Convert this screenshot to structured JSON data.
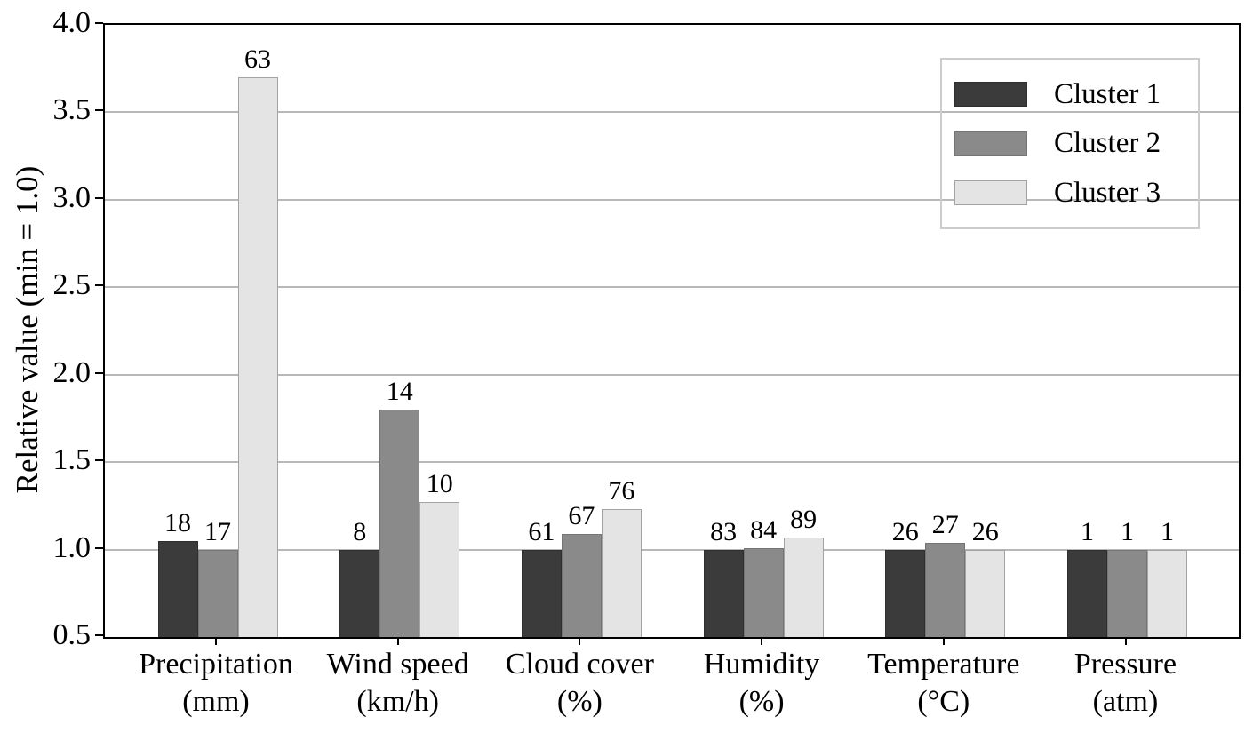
{
  "chart_data": {
    "type": "bar",
    "title": "",
    "ylabel": "Relative value (min = 1.0)",
    "xlabel": "",
    "ylim": [
      0.5,
      4.0
    ],
    "yticks": [
      "0.5",
      "1.0",
      "1.5",
      "2.0",
      "2.5",
      "3.0",
      "3.5",
      "4.0"
    ],
    "grid": "horizontal",
    "legend_position": "upper right",
    "categories": [
      {
        "label": "Precipitation",
        "unit": "(mm)"
      },
      {
        "label": "Wind speed",
        "unit": "(km/h)"
      },
      {
        "label": "Cloud cover",
        "unit": "(%)"
      },
      {
        "label": "Humidity",
        "unit": "(%)"
      },
      {
        "label": "Temperature",
        "unit": "(°C)"
      },
      {
        "label": "Pressure",
        "unit": "(atm)"
      }
    ],
    "series": [
      {
        "name": "Cluster 1",
        "color": "#3b3b3b",
        "edge_color": "#2e2e2e",
        "bar_labels": [
          "18",
          "8",
          "61",
          "83",
          "26",
          "1"
        ],
        "relative_values": [
          1.05,
          1.0,
          1.0,
          1.0,
          1.0,
          1.0
        ]
      },
      {
        "name": "Cluster 2",
        "color": "#8a8a8a",
        "edge_color": "#757575",
        "bar_labels": [
          "17",
          "14",
          "67",
          "84",
          "27",
          "1"
        ],
        "relative_values": [
          1.0,
          1.8,
          1.09,
          1.01,
          1.04,
          1.0
        ]
      },
      {
        "name": "Cluster 3",
        "color": "#e4e4e4",
        "edge_color": "#a3a3a3",
        "bar_labels": [
          "63",
          "10",
          "76",
          "89",
          "26",
          "1"
        ],
        "relative_values": [
          3.7,
          1.27,
          1.23,
          1.07,
          1.0,
          1.0
        ]
      }
    ],
    "colors": {
      "grid": "#b8b8b8",
      "spine": "#000000",
      "background": "#ffffff",
      "legend_border": "#cccccc"
    }
  }
}
